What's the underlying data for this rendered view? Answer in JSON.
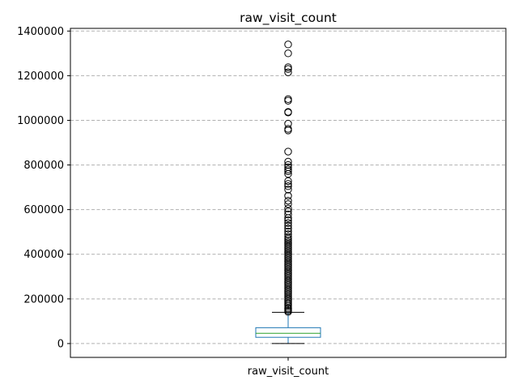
{
  "chart_data": {
    "type": "box",
    "title": "raw_visit_count",
    "categories": [
      "raw_visit_count"
    ],
    "ylim": [
      -62000,
      1412000
    ],
    "yticks": [
      0,
      200000,
      400000,
      600000,
      800000,
      1000000,
      1200000,
      1400000
    ],
    "grid": "y-dashed",
    "box": {
      "whisker_low": 0,
      "q1": 28000,
      "median": 46000,
      "q3": 71000,
      "whisker_high": 140000
    },
    "outliers": [
      142000,
      148000,
      155000,
      160000,
      168000,
      175000,
      182000,
      190000,
      198000,
      206000,
      214000,
      222000,
      230000,
      238000,
      246000,
      254000,
      262000,
      270000,
      278000,
      286000,
      294000,
      302000,
      310000,
      318000,
      326000,
      334000,
      342000,
      350000,
      358000,
      366000,
      374000,
      382000,
      390000,
      398000,
      406000,
      414000,
      422000,
      430000,
      438000,
      446000,
      454000,
      462000,
      470000,
      478000,
      490000,
      502000,
      515000,
      528000,
      540000,
      552000,
      562000,
      578000,
      592000,
      605000,
      625000,
      640000,
      662000,
      690000,
      705000,
      715000,
      728000,
      760000,
      772000,
      780000,
      790000,
      800000,
      815000,
      860000,
      955000,
      962000,
      985000,
      1035000,
      1038000,
      1088000,
      1095000,
      1215000,
      1230000,
      1238000,
      1300000,
      1340000
    ],
    "colors": {
      "box": "#1f77b4",
      "median": "#2ca02c",
      "outlier": "#000000",
      "grid": "#b0b0b0"
    }
  }
}
